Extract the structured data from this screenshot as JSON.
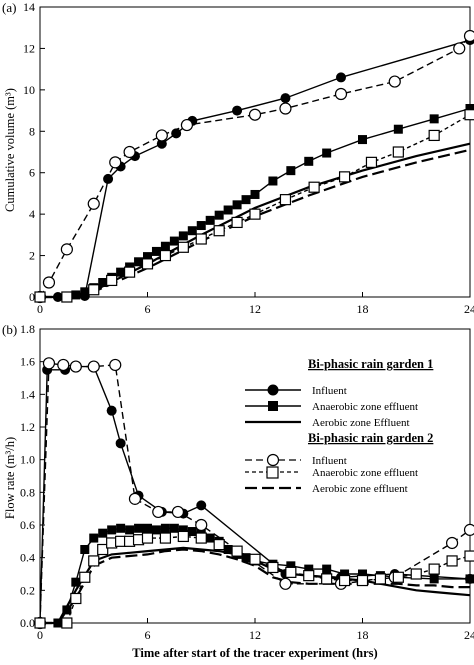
{
  "chart_data": [
    {
      "panel": "(a)",
      "type": "line",
      "xlabel": "",
      "ylabel": "Cumulative volume (m³)",
      "xlim": [
        0,
        24
      ],
      "ylim": [
        0,
        14
      ],
      "xticks": [
        0,
        6,
        12,
        18,
        24
      ],
      "yticks": [
        0,
        2,
        4,
        6,
        8,
        10,
        12,
        14
      ],
      "series": [
        {
          "key": "rg1_influent",
          "marker": "filled-circle",
          "dash": "solid",
          "x": [
            0,
            1,
            2.5,
            3.8,
            4.5,
            5.3,
            6.8,
            7.6,
            8.5,
            11,
            13.7,
            16.8,
            24
          ],
          "y": [
            0,
            0,
            0.05,
            5.7,
            6.3,
            6.8,
            7.4,
            7.9,
            8.5,
            9.0,
            9.6,
            10.6,
            12.4
          ]
        },
        {
          "key": "rg1_anaerobic",
          "marker": "filled-square",
          "dash": "solid",
          "x": [
            0,
            1.5,
            2,
            2.5,
            3,
            3.5,
            4,
            4.5,
            5,
            5.5,
            6,
            6.5,
            7,
            7.5,
            8,
            8.5,
            9,
            9.5,
            10,
            10.5,
            11,
            11.5,
            12,
            13,
            14,
            15,
            16,
            18,
            20,
            22,
            24
          ],
          "y": [
            0,
            0,
            0.1,
            0.25,
            0.45,
            0.7,
            0.95,
            1.2,
            1.45,
            1.7,
            1.95,
            2.2,
            2.45,
            2.7,
            2.95,
            3.2,
            3.45,
            3.7,
            3.95,
            4.2,
            4.45,
            4.7,
            4.95,
            5.6,
            6.1,
            6.55,
            6.95,
            7.6,
            8.1,
            8.6,
            9.1
          ]
        },
        {
          "key": "rg1_aerobic",
          "marker": "none",
          "dash": "solid",
          "x": [
            0,
            1.5,
            3,
            6,
            9,
            12,
            15,
            18,
            21,
            24
          ],
          "y": [
            0,
            0,
            0.3,
            1.6,
            3.0,
            4.3,
            5.3,
            6.1,
            6.8,
            7.4
          ]
        },
        {
          "key": "rg2_influent",
          "marker": "open-circle",
          "dash": "dashed",
          "x": [
            0,
            0.5,
            1.5,
            3,
            4.2,
            5,
            6.8,
            8.2,
            12,
            13.7,
            16.8,
            19.8,
            23.4,
            24
          ],
          "y": [
            0,
            0.7,
            2.3,
            4.5,
            6.5,
            7.0,
            7.8,
            8.3,
            8.8,
            9.1,
            9.8,
            10.4,
            12.0,
            12.6
          ]
        },
        {
          "key": "rg2_anaerobic",
          "marker": "open-square",
          "dash": "dashed",
          "x": [
            0,
            1.5,
            3,
            4,
            5,
            6,
            7,
            8,
            9,
            10,
            11,
            12,
            13.7,
            15.3,
            17,
            18.5,
            20,
            22,
            24
          ],
          "y": [
            0,
            0,
            0.35,
            0.8,
            1.2,
            1.6,
            2.0,
            2.4,
            2.8,
            3.2,
            3.6,
            4.0,
            4.7,
            5.3,
            5.8,
            6.5,
            7.0,
            7.8,
            8.8
          ]
        },
        {
          "key": "rg2_aerobic",
          "marker": "none",
          "dash": "longdash",
          "x": [
            0,
            1.5,
            3,
            6,
            9,
            12,
            15,
            18,
            21,
            24
          ],
          "y": [
            0,
            0,
            0.25,
            1.4,
            2.7,
            3.9,
            4.9,
            5.8,
            6.5,
            7.1
          ]
        }
      ]
    },
    {
      "panel": "(b)",
      "type": "line",
      "xlabel": "Time after start of the tracer experiment (hrs)",
      "ylabel": "Flow rate (m³/h)",
      "xlim": [
        0,
        24
      ],
      "ylim": [
        0,
        1.8
      ],
      "xticks": [
        0,
        6,
        12,
        18,
        24
      ],
      "yticks": [
        0.0,
        0.2,
        0.4,
        0.6,
        0.8,
        1.0,
        1.2,
        1.4,
        1.6,
        1.8
      ],
      "series": [
        {
          "key": "rg1_influent",
          "marker": "filled-circle",
          "dash": "solid",
          "x": [
            0,
            0.4,
            1.4,
            2,
            3,
            4,
            4.5,
            5.5,
            6.8,
            8,
            9,
            13.7,
            16.8,
            19.8,
            24
          ],
          "y": [
            0,
            1.55,
            1.55,
            1.57,
            1.57,
            1.3,
            1.1,
            0.78,
            0.68,
            0.67,
            0.72,
            0.3,
            0.28,
            0.3,
            0.27
          ]
        },
        {
          "key": "rg1_anaerobic",
          "marker": "filled-square",
          "dash": "solid",
          "x": [
            0,
            1,
            1.5,
            2,
            2.5,
            3,
            3.5,
            4,
            4.5,
            5,
            5.5,
            6,
            6.5,
            7,
            7.5,
            8,
            8.5,
            9,
            9.5,
            10,
            10.5,
            11,
            11.5,
            12,
            13,
            14,
            15,
            16,
            17,
            18,
            19,
            20,
            22,
            24
          ],
          "y": [
            0,
            0,
            0.08,
            0.25,
            0.45,
            0.52,
            0.55,
            0.57,
            0.58,
            0.57,
            0.58,
            0.58,
            0.57,
            0.58,
            0.58,
            0.57,
            0.56,
            0.55,
            0.52,
            0.5,
            0.45,
            0.42,
            0.4,
            0.38,
            0.36,
            0.35,
            0.33,
            0.33,
            0.3,
            0.3,
            0.29,
            0.28,
            0.27,
            0.27
          ]
        },
        {
          "key": "rg1_aerobic",
          "marker": "none",
          "dash": "solid",
          "x": [
            0,
            1,
            2,
            3,
            4,
            5,
            6,
            7,
            8,
            9,
            10,
            11,
            12,
            13,
            14,
            15,
            16,
            17,
            18,
            19,
            20,
            21,
            22,
            23,
            24
          ],
          "y": [
            0,
            0,
            0.2,
            0.38,
            0.42,
            0.43,
            0.44,
            0.45,
            0.46,
            0.45,
            0.44,
            0.42,
            0.38,
            0.33,
            0.3,
            0.29,
            0.28,
            0.27,
            0.26,
            0.24,
            0.22,
            0.2,
            0.19,
            0.18,
            0.17
          ]
        },
        {
          "key": "rg2_influent",
          "marker": "open-circle",
          "dash": "dashed",
          "x": [
            0,
            0.5,
            1.3,
            2,
            3,
            4.2,
            5.3,
            6.6,
            7.7,
            9,
            13.7,
            16.8,
            19.8,
            23,
            24
          ],
          "y": [
            0,
            1.59,
            1.58,
            1.57,
            1.57,
            1.58,
            0.76,
            0.68,
            0.68,
            0.6,
            0.24,
            0.24,
            0.28,
            0.49,
            0.57
          ]
        },
        {
          "key": "rg2_anaerobic",
          "marker": "open-square",
          "dash": "dashed",
          "x": [
            0,
            1.5,
            2,
            2.5,
            3,
            3.5,
            4,
            4.5,
            5,
            5.5,
            6,
            7,
            8,
            9,
            10,
            11,
            12,
            13,
            14,
            15,
            16,
            17,
            18,
            19,
            20,
            21,
            22,
            23,
            24
          ],
          "y": [
            0,
            0,
            0.15,
            0.28,
            0.38,
            0.45,
            0.49,
            0.5,
            0.5,
            0.51,
            0.52,
            0.52,
            0.53,
            0.52,
            0.48,
            0.44,
            0.39,
            0.34,
            0.31,
            0.29,
            0.27,
            0.26,
            0.26,
            0.27,
            0.28,
            0.3,
            0.33,
            0.38,
            0.41
          ]
        },
        {
          "key": "rg2_aerobic",
          "marker": "none",
          "dash": "longdash",
          "x": [
            0,
            1,
            2,
            3,
            4,
            5,
            6,
            7,
            8,
            9,
            10,
            11,
            12,
            13,
            14,
            15,
            16,
            17,
            18,
            19,
            20,
            21,
            22,
            23,
            24
          ],
          "y": [
            0,
            0,
            0.15,
            0.35,
            0.4,
            0.41,
            0.42,
            0.44,
            0.45,
            0.44,
            0.42,
            0.39,
            0.35,
            0.28,
            0.25,
            0.24,
            0.24,
            0.24,
            0.24,
            0.24,
            0.24,
            0.23,
            0.23,
            0.22,
            0.22
          ]
        }
      ]
    }
  ],
  "legend": {
    "group1_title": "Bi-phasic rain garden 1",
    "group2_title": "Bi-phasic rain garden 2",
    "rg1_influent": "Influent",
    "rg1_anaerobic": "Anaerobic zone effluent",
    "rg1_aerobic": "Aerobic zone Effluent",
    "rg2_influent": "Influent",
    "rg2_anaerobic": "Anaerobic zone effluent",
    "rg2_aerobic": "Aerobic zone effluent"
  },
  "colors": {
    "ink": "#000000",
    "background": "#ffffff"
  }
}
